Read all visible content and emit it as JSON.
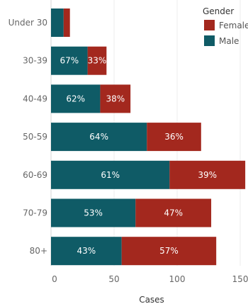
{
  "chart_data": {
    "type": "bar",
    "orientation": "horizontal",
    "stacked": true,
    "categories": [
      "Under 30",
      "30-39",
      "40-49",
      "50-59",
      "60-69",
      "70-79",
      "80+"
    ],
    "series": [
      {
        "name": "Male",
        "color": "#0f5b66",
        "values": [
          10,
          29,
          39,
          76,
          94,
          67,
          56
        ],
        "labels": [
          "",
          "67%",
          "62%",
          "64%",
          "61%",
          "53%",
          "43%"
        ]
      },
      {
        "name": "Female",
        "color": "#a3281e",
        "values": [
          5,
          15,
          24,
          43,
          60,
          60,
          75
        ],
        "labels": [
          "",
          "33%",
          "38%",
          "36%",
          "39%",
          "47%",
          "57%"
        ]
      }
    ],
    "xlabel": "Cases",
    "ylabel": "",
    "xlim": [
      0,
      155
    ],
    "xticks": [
      0,
      50,
      100,
      150
    ],
    "grid": true,
    "legend": {
      "title": "Gender",
      "position": "top-right",
      "entries": [
        {
          "label": "Female",
          "color": "#a3281e"
        },
        {
          "label": "Male",
          "color": "#0f5b66"
        }
      ]
    }
  }
}
